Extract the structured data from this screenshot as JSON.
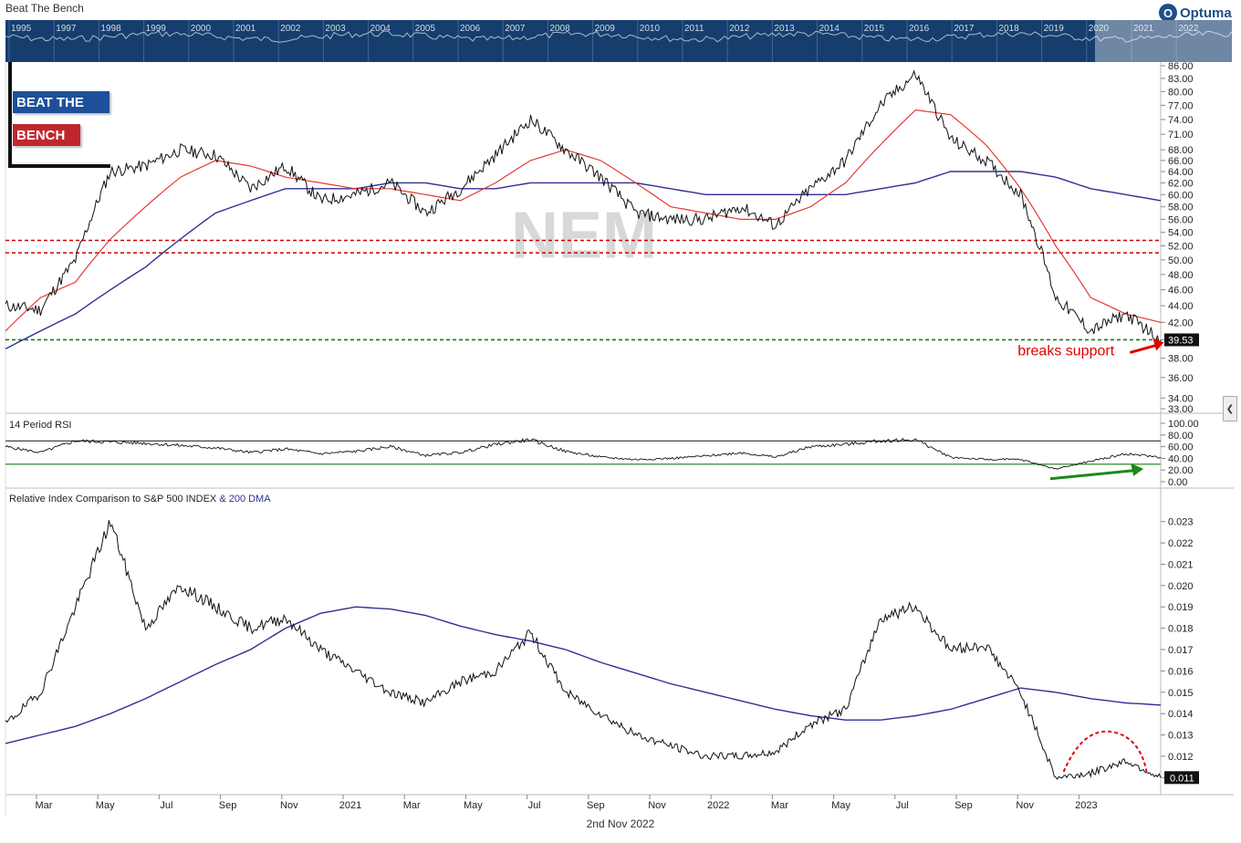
{
  "app": {
    "title": "Beat The Bench",
    "logo_text": "Optuma",
    "footer_date": "2nd Nov 2022"
  },
  "brand": {
    "line1": "BEAT THE",
    "line2": "BENCH"
  },
  "overview": {
    "years": [
      "1995",
      "1997",
      "1998",
      "1999",
      "2000",
      "2001",
      "2002",
      "2003",
      "2004",
      "2005",
      "2006",
      "2007",
      "2008",
      "2009",
      "2010",
      "2011",
      "2012",
      "2013",
      "2014",
      "2015",
      "2016",
      "2017",
      "2018",
      "2019",
      "2020",
      "2021",
      "2022"
    ]
  },
  "colors": {
    "price": "#111111",
    "ma50": "#e53935",
    "ma200": "#2e3192",
    "resistance": "#cc0000",
    "support": "#1a7a1a",
    "arrow_red": "#e00000",
    "arrow_green": "#1a8a1a",
    "watermark": "#d8d8d8"
  },
  "chart_data": [
    {
      "type": "line",
      "watermark": "NEM",
      "x_axis": {
        "ticks": [
          "Mar",
          "May",
          "Jul",
          "Sep",
          "Nov",
          "2021",
          "Mar",
          "May",
          "Jul",
          "Sep",
          "Nov",
          "2022",
          "Mar",
          "May",
          "Jul",
          "Sep",
          "Nov",
          "2023"
        ]
      },
      "y_axis": {
        "ticks": [
          "86.00",
          "83.00",
          "80.00",
          "77.00",
          "74.00",
          "71.00",
          "68.00",
          "66.00",
          "64.00",
          "62.00",
          "60.00",
          "58.00",
          "56.00",
          "54.00",
          "52.00",
          "50.00",
          "48.00",
          "46.00",
          "44.00",
          "42.00",
          "40.00",
          "38.00",
          "36.00",
          "34.00",
          "33.00"
        ],
        "ylim": [
          33,
          86
        ],
        "scale": "log"
      },
      "last_value": "39.53",
      "series": [
        {
          "name": "price",
          "x": [
            "2020-02",
            "2020-03",
            "2020-04",
            "2020-05",
            "2020-06",
            "2020-07",
            "2020-08",
            "2020-09",
            "2020-10",
            "2020-11",
            "2020-12",
            "2021-01",
            "2021-02",
            "2021-03",
            "2021-04",
            "2021-05",
            "2021-06",
            "2021-07",
            "2021-08",
            "2021-09",
            "2021-10",
            "2021-11",
            "2021-12",
            "2022-01",
            "2022-02",
            "2022-03",
            "2022-04",
            "2022-05",
            "2022-06",
            "2022-07",
            "2022-08",
            "2022-09",
            "2022-10",
            "2022-11"
          ],
          "values": [
            44,
            43.5,
            50,
            64,
            65,
            68,
            67,
            61,
            65,
            59,
            60,
            62,
            57,
            61,
            67,
            74,
            68,
            63,
            57,
            56,
            56,
            58,
            55,
            61,
            66,
            77,
            84,
            70,
            66,
            60,
            45,
            41,
            43,
            40
          ]
        },
        {
          "name": "ma50",
          "values": [
            41,
            45,
            47,
            53,
            58,
            63,
            66,
            65,
            63,
            62,
            61,
            61,
            60,
            59,
            62,
            66,
            68,
            66,
            62,
            58,
            57,
            56,
            56,
            58,
            62,
            69,
            76,
            75,
            69,
            61,
            52,
            45,
            43,
            42
          ]
        },
        {
          "name": "ma200",
          "values": [
            39,
            41,
            43,
            46,
            49,
            53,
            57,
            59,
            61,
            61,
            61,
            62,
            62,
            61,
            61,
            62,
            62,
            62,
            62,
            61,
            60,
            60,
            60,
            60,
            60,
            61,
            62,
            64,
            64,
            64,
            63,
            61,
            60,
            59
          ]
        }
      ],
      "levels": {
        "resistance": [
          52.8,
          51
        ],
        "support": 40
      },
      "annotation": "breaks support"
    },
    {
      "type": "line",
      "title": "14 Period RSI",
      "y_axis": {
        "ticks": [
          "100.00",
          "80.00",
          "60.00",
          "40.00",
          "20.00",
          "0.00"
        ],
        "ylim": [
          0,
          100
        ]
      },
      "levels": [
        70,
        30
      ],
      "series": [
        {
          "name": "RSI",
          "values": [
            60,
            50,
            70,
            68,
            66,
            62,
            58,
            50,
            56,
            48,
            52,
            60,
            45,
            50,
            64,
            72,
            52,
            42,
            38,
            40,
            44,
            50,
            42,
            60,
            64,
            70,
            72,
            42,
            38,
            38,
            22,
            35,
            48,
            42
          ]
        }
      ]
    },
    {
      "type": "line",
      "title": "Relative Index Comparison to S&P 500 INDEX",
      "title_suffix": "& 200 DMA",
      "y_axis": {
        "ticks": [
          "0.023",
          "0.022",
          "0.021",
          "0.020",
          "0.019",
          "0.018",
          "0.017",
          "0.016",
          "0.015",
          "0.014",
          "0.013",
          "0.012",
          "0.011"
        ],
        "ylim": [
          0.0105,
          0.0235
        ]
      },
      "last_value": "0.011",
      "series": [
        {
          "name": "relative",
          "values": [
            0.0135,
            0.015,
            0.019,
            0.023,
            0.018,
            0.02,
            0.019,
            0.018,
            0.0185,
            0.017,
            0.016,
            0.015,
            0.0145,
            0.0155,
            0.016,
            0.0178,
            0.015,
            0.014,
            0.013,
            0.0125,
            0.012,
            0.012,
            0.0122,
            0.0135,
            0.0142,
            0.0185,
            0.019,
            0.017,
            0.0172,
            0.015,
            0.011,
            0.0112,
            0.0118,
            0.011
          ]
        },
        {
          "name": "DMA",
          "values": [
            0.0126,
            0.013,
            0.0134,
            0.014,
            0.0147,
            0.0155,
            0.0163,
            0.017,
            0.018,
            0.0187,
            0.019,
            0.0189,
            0.0186,
            0.0181,
            0.0177,
            0.0174,
            0.017,
            0.0164,
            0.0159,
            0.0154,
            0.015,
            0.0146,
            0.0142,
            0.0139,
            0.0137,
            0.0137,
            0.0139,
            0.0142,
            0.0147,
            0.0152,
            0.015,
            0.0147,
            0.0145,
            0.0144
          ]
        }
      ]
    }
  ]
}
